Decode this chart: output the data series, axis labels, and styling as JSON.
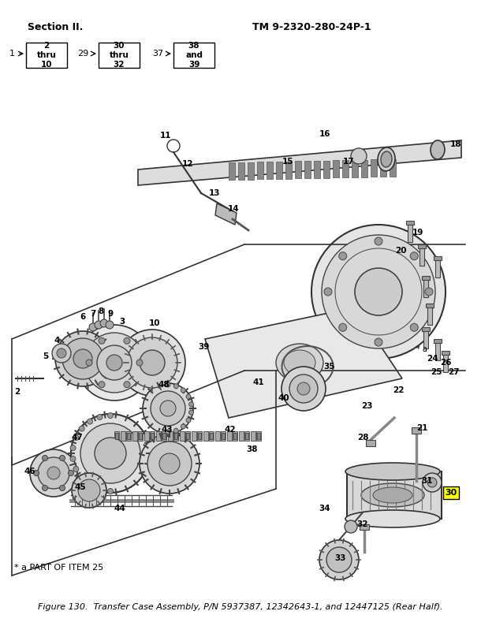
{
  "title_left": "Section II.",
  "title_right": "TM 9-2320-280-24P-1",
  "caption": "Figure 130.  Transfer Case Assembly, P/N 5937387, 12342643-1, and 12447125 (Rear Half).",
  "footnote": "* a PART OF ITEM 25",
  "highlight_color": "#FFFF00",
  "highlight_item": "30",
  "background_color": "#FFFFFF",
  "border_color": "#000000",
  "text_color": "#000000",
  "fig_width": 6.1,
  "fig_height": 7.94,
  "dpi": 100
}
